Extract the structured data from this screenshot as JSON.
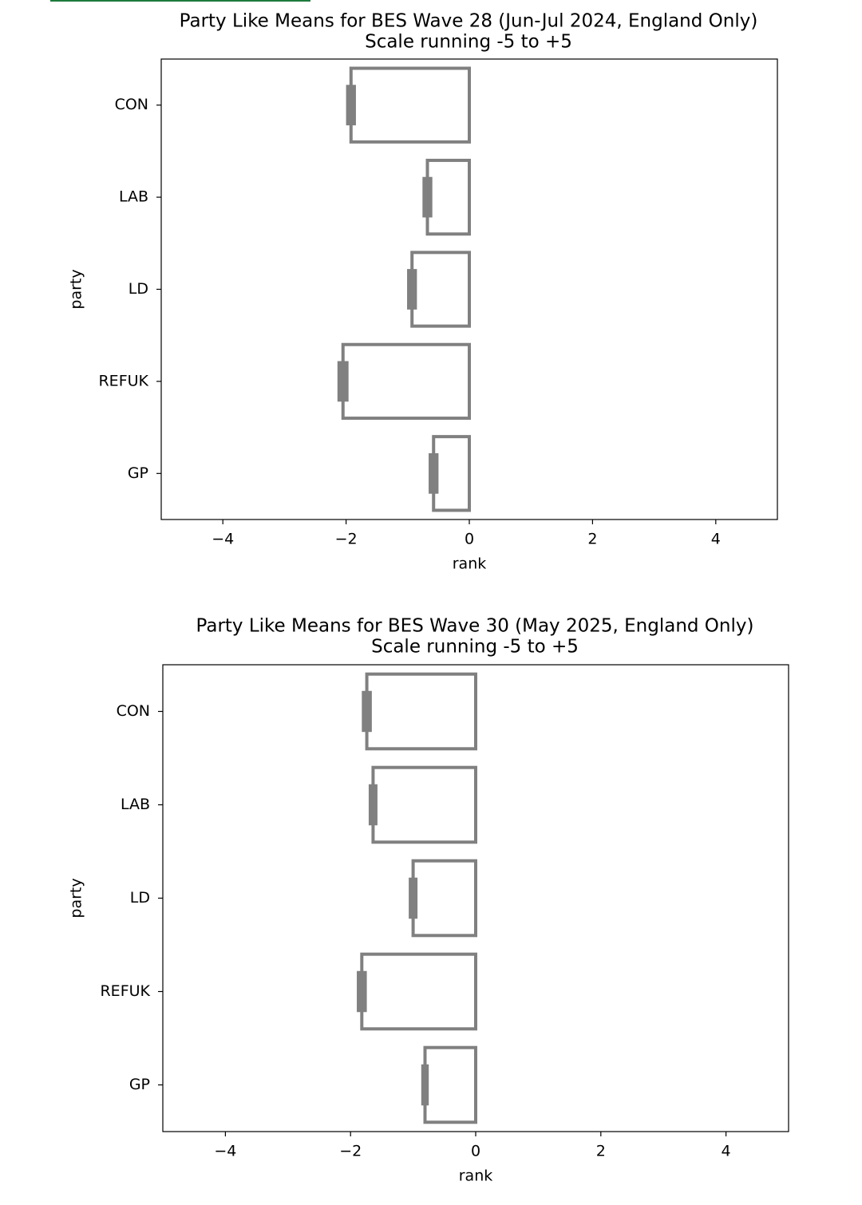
{
  "chart_data": [
    {
      "type": "bar",
      "orientation": "horizontal",
      "title": "Party Like Means for BES Wave 28 (Jun-Jul 2024, England Only)",
      "subtitle": "Scale running -5 to +5",
      "xlabel": "rank",
      "ylabel": "party",
      "categories": [
        "CON",
        "LAB",
        "LD",
        "REFUK",
        "GP"
      ],
      "values": [
        -1.92,
        -0.68,
        -0.93,
        -2.05,
        -0.58
      ],
      "errors": [
        0.08,
        0.08,
        0.08,
        0.09,
        0.08
      ],
      "color": "#808080",
      "xlim": [
        -5,
        5
      ],
      "xticks": [
        {
          "value": -4,
          "label": "−4"
        },
        {
          "value": -2,
          "label": "−2"
        },
        0,
        2,
        4
      ],
      "grid": false
    },
    {
      "type": "bar",
      "orientation": "horizontal",
      "title": "Party Like Means for BES Wave 30 (May 2025, England Only)",
      "subtitle": "Scale running -5 to +5",
      "xlabel": "rank",
      "ylabel": "party",
      "categories": [
        "CON",
        "LAB",
        "LD",
        "REFUK",
        "GP"
      ],
      "values": [
        -1.74,
        -1.64,
        -1.0,
        -1.82,
        -0.81
      ],
      "errors": [
        0.08,
        0.07,
        0.07,
        0.08,
        0.06
      ],
      "color": "#808080",
      "xlim": [
        -5,
        5
      ],
      "xticks": [
        {
          "value": -4,
          "label": "−4"
        },
        {
          "value": -2,
          "label": "−2"
        },
        0,
        2,
        4
      ],
      "grid": false
    }
  ]
}
